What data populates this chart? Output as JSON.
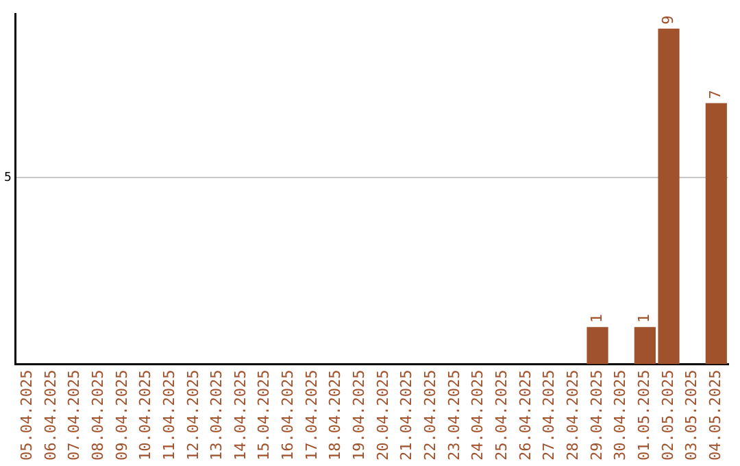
{
  "chart_data": {
    "type": "bar",
    "categories": [
      "05.04.2025",
      "06.04.2025",
      "07.04.2025",
      "08.04.2025",
      "09.04.2025",
      "10.04.2025",
      "11.04.2025",
      "12.04.2025",
      "13.04.2025",
      "14.04.2025",
      "15.04.2025",
      "16.04.2025",
      "17.04.2025",
      "18.04.2025",
      "19.04.2025",
      "20.04.2025",
      "21.04.2025",
      "22.04.2025",
      "23.04.2025",
      "24.04.2025",
      "25.04.2025",
      "26.04.2025",
      "27.04.2025",
      "28.04.2025",
      "29.04.2025",
      "30.04.2025",
      "01.05.2025",
      "02.05.2025",
      "03.05.2025",
      "04.05.2025"
    ],
    "values": [
      null,
      null,
      null,
      null,
      null,
      null,
      null,
      null,
      null,
      null,
      null,
      null,
      null,
      null,
      null,
      null,
      null,
      null,
      null,
      null,
      null,
      null,
      null,
      null,
      1,
      null,
      1,
      9,
      null,
      7
    ],
    "color": "#a0522d",
    "ylim": [
      0,
      9.4
    ],
    "yticks": [
      5
    ],
    "grid": "y",
    "data_labels": true,
    "legend": false
  }
}
